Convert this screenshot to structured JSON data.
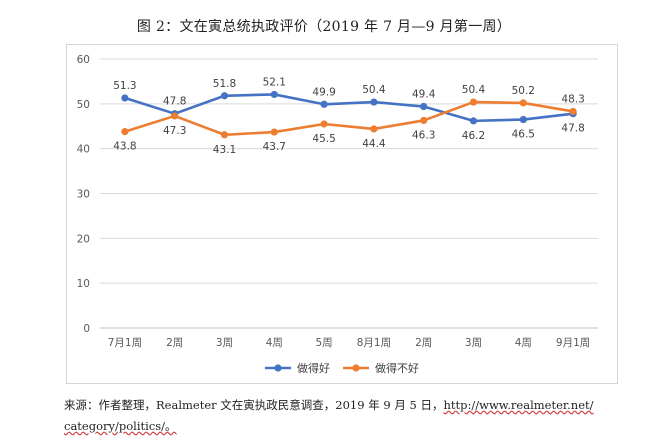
{
  "chart_data": {
    "type": "line",
    "title": "图 2：文在寅总统执政评价（2019 年 7 月—9 月第一周）",
    "categories": [
      "7月1周",
      "2周",
      "3周",
      "4周",
      "5周",
      "8月1周",
      "2周",
      "3周",
      "4周",
      "9月1周"
    ],
    "series": [
      {
        "name": "做得好",
        "color": "#4472c4",
        "values": [
          51.3,
          47.8,
          51.8,
          52.1,
          49.9,
          50.4,
          49.4,
          46.2,
          46.5,
          47.8
        ]
      },
      {
        "name": "做得不好",
        "color": "#ed7d31",
        "values": [
          43.8,
          47.3,
          43.1,
          43.7,
          45.5,
          44.4,
          46.3,
          50.4,
          50.2,
          48.3
        ]
      }
    ],
    "ylim": [
      0,
      60
    ],
    "yticks": [
      0,
      10,
      20,
      30,
      40,
      50,
      60
    ],
    "grid": true,
    "legend": "bottom",
    "xlabel": "",
    "ylabel": ""
  },
  "source": {
    "prefix": "来源：作者整理，Realmeter 文在寅执政民意调查，2019 年 9 月 5 日，",
    "link": "http://www.realmeter.net/",
    "line2": "category/politics/。"
  }
}
